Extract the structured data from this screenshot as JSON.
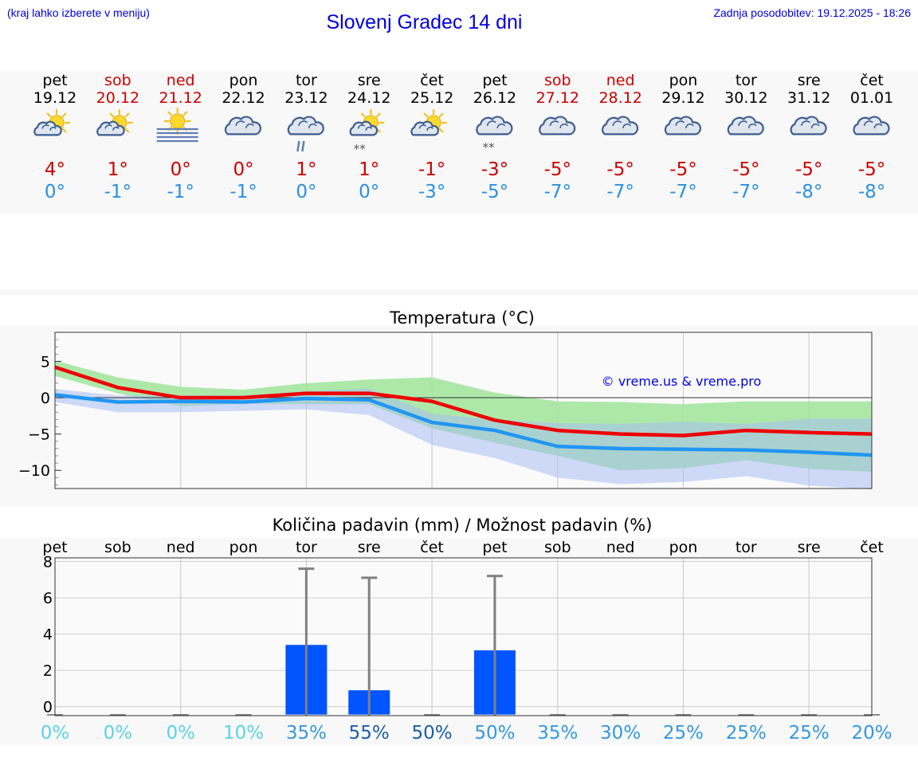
{
  "header": {
    "hint": "(kraj lahko izberete v meniju)",
    "title": "Slovenj Gradec 14 dni",
    "updated": "Zadnja posodobitev: 19.12.2025 - 18:26"
  },
  "colors": {
    "weekday": "#000000",
    "weekend": "#cc0000",
    "tmax": "#cc0000",
    "tmin": "#2a8fe0",
    "link": "#0000dd",
    "max_line": "#ee0000",
    "min_line": "#2196f3",
    "band_green": "#a4e6a0",
    "band_blue": "#a8bdf3",
    "band_overlap": "#7fc4a6",
    "bar": "#0055ff"
  },
  "days": [
    {
      "dow": "pet",
      "date": "19.12",
      "weekend": false,
      "icon": "sun-cloud-icon",
      "tmax": "4°",
      "tmin": "0°"
    },
    {
      "dow": "sob",
      "date": "20.12",
      "weekend": true,
      "icon": "sun-cloud-icon",
      "tmax": "1°",
      "tmin": "-1°"
    },
    {
      "dow": "ned",
      "date": "21.12",
      "weekend": true,
      "icon": "sun-fog-icon",
      "tmax": "0°",
      "tmin": "-1°"
    },
    {
      "dow": "pon",
      "date": "22.12",
      "weekend": false,
      "icon": "cloudy-icon",
      "tmax": "0°",
      "tmin": "-1°"
    },
    {
      "dow": "tor",
      "date": "23.12",
      "weekend": false,
      "icon": "cloud-rain-icon",
      "tmax": "1°",
      "tmin": "0°"
    },
    {
      "dow": "sre",
      "date": "24.12",
      "weekend": false,
      "icon": "sun-cloud-snow-icon",
      "tmax": "1°",
      "tmin": "0°"
    },
    {
      "dow": "čet",
      "date": "25.12",
      "weekend": false,
      "icon": "sun-cloud-icon",
      "tmax": "-1°",
      "tmin": "-3°"
    },
    {
      "dow": "pet",
      "date": "26.12",
      "weekend": false,
      "icon": "cloud-snow-icon",
      "tmax": "-3°",
      "tmin": "-5°"
    },
    {
      "dow": "sob",
      "date": "27.12",
      "weekend": true,
      "icon": "cloudy-icon",
      "tmax": "-5°",
      "tmin": "-7°"
    },
    {
      "dow": "ned",
      "date": "28.12",
      "weekend": true,
      "icon": "cloudy-icon",
      "tmax": "-5°",
      "tmin": "-7°"
    },
    {
      "dow": "pon",
      "date": "29.12",
      "weekend": false,
      "icon": "cloudy-icon",
      "tmax": "-5°",
      "tmin": "-7°"
    },
    {
      "dow": "tor",
      "date": "30.12",
      "weekend": false,
      "icon": "cloudy-icon",
      "tmax": "-5°",
      "tmin": "-7°"
    },
    {
      "dow": "sre",
      "date": "31.12",
      "weekend": false,
      "icon": "cloudy-icon",
      "tmax": "-5°",
      "tmin": "-8°"
    },
    {
      "dow": "čet",
      "date": "01.01",
      "weekend": false,
      "icon": "cloudy-icon",
      "tmax": "-5°",
      "tmin": "-8°"
    }
  ],
  "chart_data": [
    {
      "type": "line",
      "title": "Temperatura (°C)",
      "watermark": "© vreme.us & vreme.pro",
      "x": [
        0,
        1,
        2,
        3,
        4,
        5,
        6,
        7,
        8,
        9,
        10,
        11,
        12,
        13
      ],
      "ylim": [
        -12.5,
        9
      ],
      "yticks": [
        5,
        0,
        -5,
        -10
      ],
      "ytick_labels": [
        "5",
        "0",
        "−5",
        "−10"
      ],
      "grid": true,
      "series": [
        {
          "name": "max",
          "values": [
            4.2,
            1.4,
            0,
            0,
            0.6,
            0.6,
            -0.5,
            -3.1,
            -4.5,
            -5,
            -5.2,
            -4.5,
            -4.8,
            -5
          ]
        },
        {
          "name": "min",
          "values": [
            0.4,
            -0.6,
            -0.5,
            -0.6,
            -0.1,
            -0.3,
            -3.4,
            -4.5,
            -6.7,
            -7,
            -7.1,
            -7.2,
            -7.5,
            -7.9
          ]
        }
      ],
      "bands": [
        {
          "name": "max-range",
          "upper": [
            5.1,
            2.8,
            1.5,
            1.1,
            2,
            2.5,
            2.8,
            0.7,
            -0.5,
            -0.6,
            -0.9,
            -0.5,
            -0.5,
            -0.5
          ],
          "lower": [
            3,
            0.6,
            -1.2,
            -0.8,
            -0.9,
            -0.9,
            -4.2,
            -6.2,
            -8,
            -10,
            -9.7,
            -8.6,
            -9.8,
            -10.2
          ]
        },
        {
          "name": "min-range",
          "upper": [
            1.2,
            0.3,
            0.3,
            0.3,
            0.9,
            1.3,
            -2.2,
            -3,
            -3.5,
            -3.6,
            -3.3,
            -3.6,
            -2.9,
            -2.9
          ],
          "lower": [
            -0.6,
            -2,
            -2,
            -1.8,
            -1.6,
            -2.4,
            -6.5,
            -8.3,
            -11,
            -11.9,
            -11.6,
            -10.8,
            -12.1,
            -12.6
          ]
        }
      ]
    },
    {
      "type": "bar",
      "title": "Količina padavin (mm) / Možnost padavin (%)",
      "categories": [
        "pet",
        "sob",
        "ned",
        "pon",
        "tor",
        "sre",
        "čet",
        "pet",
        "sob",
        "ned",
        "pon",
        "tor",
        "sre",
        "čet"
      ],
      "values": [
        0,
        0,
        0,
        0,
        3.4,
        0.9,
        0,
        3.1,
        0,
        0,
        0,
        0,
        0,
        0
      ],
      "error_max": [
        null,
        null,
        null,
        null,
        7.6,
        7.1,
        null,
        7.2,
        null,
        null,
        null,
        null,
        null,
        null
      ],
      "probability": [
        "0%",
        "0%",
        "0%",
        "10%",
        "35%",
        "55%",
        "50%",
        "50%",
        "35%",
        "30%",
        "25%",
        "25%",
        "25%",
        "20%"
      ],
      "probability_colors": [
        "#5ad3e8",
        "#5ad3e8",
        "#5ad3e8",
        "#5ad3e8",
        "#3399dd",
        "#1a5da8",
        "#1a5da8",
        "#3399dd",
        "#3399dd",
        "#3399dd",
        "#3399dd",
        "#3399dd",
        "#3399dd",
        "#3399dd"
      ],
      "ylim": [
        -0.5,
        8.2
      ],
      "yticks": [
        0,
        2,
        4,
        6,
        8
      ],
      "ytick_labels": [
        "0",
        "2",
        "4",
        "6",
        "8"
      ],
      "grid": true
    }
  ]
}
